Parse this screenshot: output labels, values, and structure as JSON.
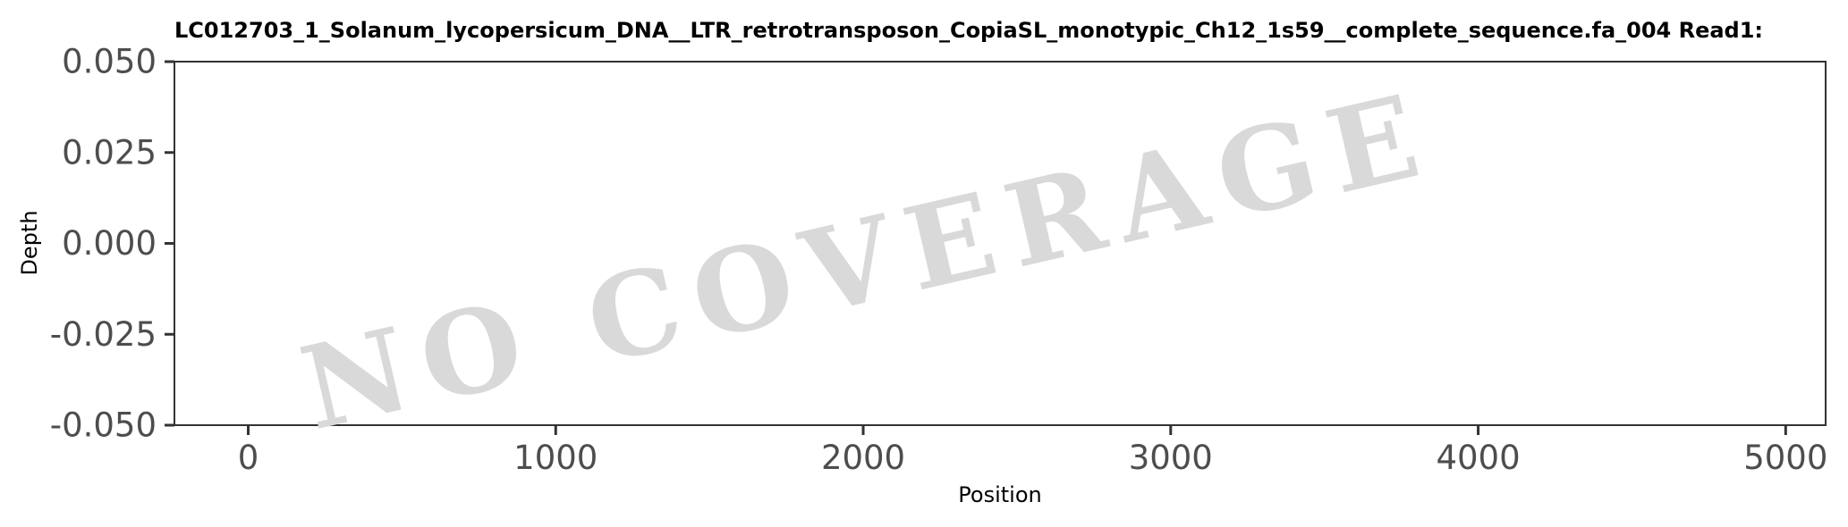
{
  "chart_data": {
    "type": "line",
    "title": "LC012703_1_Solanum_lycopersicum_DNA__LTR_retrotransposon_CopiaSL_monotypic_Ch12_1s59__complete_sequence.fa_004   Read1:",
    "xlabel": "Position",
    "ylabel": "Depth",
    "xlim": [
      -240,
      5130
    ],
    "ylim": [
      -0.05,
      0.05
    ],
    "xticks": [
      {
        "value": 0,
        "label": "0"
      },
      {
        "value": 1000,
        "label": "1000"
      },
      {
        "value": 2000,
        "label": "2000"
      },
      {
        "value": 3000,
        "label": "3000"
      },
      {
        "value": 4000,
        "label": "4000"
      },
      {
        "value": 5000,
        "label": "5000"
      }
    ],
    "yticks": [
      {
        "value": 0.05,
        "label": "0.050"
      },
      {
        "value": 0.025,
        "label": "0.025"
      },
      {
        "value": 0.0,
        "label": "0.000"
      },
      {
        "value": -0.025,
        "label": "-0.025"
      },
      {
        "value": -0.05,
        "label": "-0.050"
      }
    ],
    "series": [],
    "grid": false,
    "watermark": {
      "text": "NO COVERAGE",
      "color": "#d9d9d9"
    }
  }
}
